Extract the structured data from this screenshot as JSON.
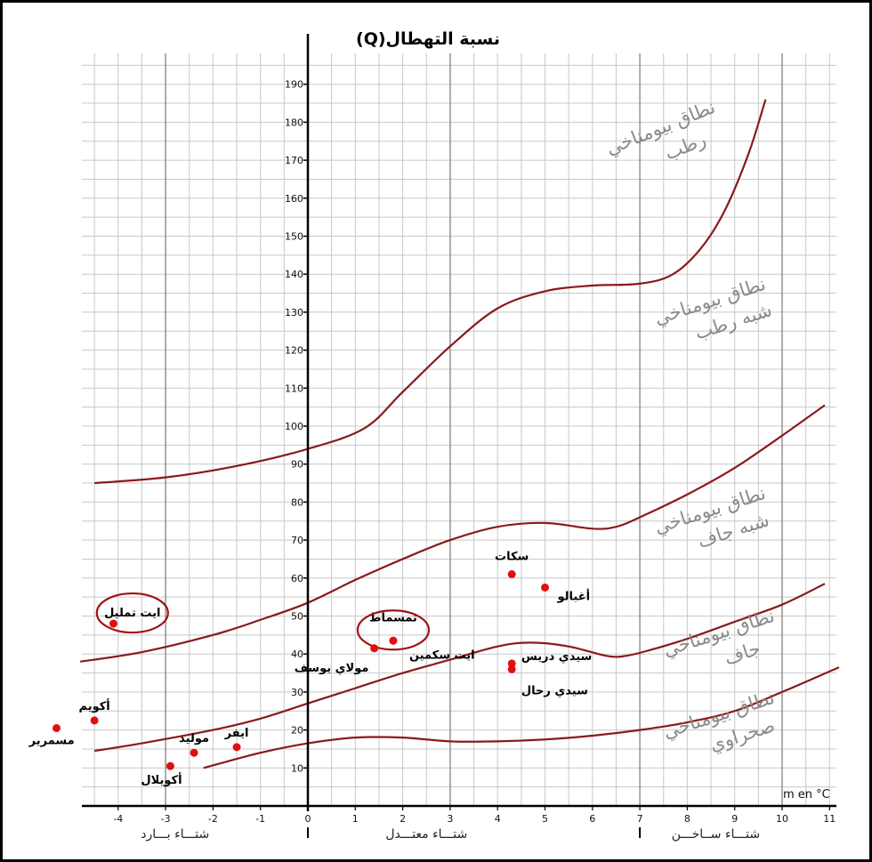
{
  "chart_data": {
    "type": "scatter",
    "ylabel": "نسبة التهطال(Q)",
    "xlabel": "m en °C",
    "xlim": [
      -4.8,
      11.2
    ],
    "ylim": [
      0,
      196
    ],
    "x_ticks": [
      -4,
      -3,
      -2,
      -1,
      0,
      1,
      2,
      3,
      4,
      5,
      6,
      7,
      8,
      9,
      10,
      11
    ],
    "y_ticks": [
      10,
      20,
      30,
      40,
      50,
      60,
      70,
      80,
      90,
      100,
      110,
      120,
      130,
      140,
      150,
      160,
      170,
      180,
      190
    ],
    "grid": true,
    "zones": [
      {
        "lines": [
          "نطاق بيومناخي",
          "رطب"
        ]
      },
      {
        "lines": [
          "نطاق بيومناخي",
          "شبه رطب"
        ]
      },
      {
        "lines": [
          "نطاق بيومناخي",
          "شبه جاف"
        ]
      },
      {
        "lines": [
          "نطاق بيومناخي",
          "جاف"
        ]
      },
      {
        "lines": [
          "نطاق بيومناخي",
          "صحراوي"
        ]
      }
    ],
    "winters": [
      {
        "label": "شتـــاء بـــارد"
      },
      {
        "label": "شتـــاء معتـــدل"
      },
      {
        "label": "شتـــاء ســاخـــن"
      }
    ],
    "boundaries": [
      {
        "name": "humid / sub-humid",
        "points": [
          [
            -4.5,
            85
          ],
          [
            -3,
            86.5
          ],
          [
            -1.5,
            89.5
          ],
          [
            0,
            94
          ],
          [
            1.2,
            99.5
          ],
          [
            2,
            109
          ],
          [
            3,
            121
          ],
          [
            4,
            131
          ],
          [
            5,
            135.5
          ],
          [
            6,
            137
          ],
          [
            7,
            137.5
          ],
          [
            7.7,
            140
          ],
          [
            8.3,
            147
          ],
          [
            8.8,
            157
          ],
          [
            9.3,
            172
          ],
          [
            9.65,
            186
          ]
        ]
      },
      {
        "name": "sub-humid / semi-arid",
        "points": [
          [
            -4.8,
            38
          ],
          [
            -3.5,
            40.5
          ],
          [
            -2,
            45
          ],
          [
            -1,
            49
          ],
          [
            0,
            53.5
          ],
          [
            1,
            59.5
          ],
          [
            2,
            65
          ],
          [
            3,
            70
          ],
          [
            4,
            73.5
          ],
          [
            5,
            74.5
          ],
          [
            6,
            73
          ],
          [
            6.5,
            73.5
          ],
          [
            7,
            76
          ],
          [
            8,
            82
          ],
          [
            9,
            89
          ],
          [
            10,
            97.5
          ],
          [
            10.9,
            105.5
          ]
        ]
      },
      {
        "name": "semi-arid / arid",
        "points": [
          [
            -4.5,
            14.5
          ],
          [
            -3.5,
            16.5
          ],
          [
            -2,
            20
          ],
          [
            -1,
            23
          ],
          [
            0,
            27
          ],
          [
            1,
            31
          ],
          [
            2,
            35
          ],
          [
            3,
            38.5
          ],
          [
            4,
            42
          ],
          [
            4.7,
            43
          ],
          [
            5.5,
            42
          ],
          [
            6.3,
            39.5
          ],
          [
            6.7,
            39.5
          ],
          [
            7.2,
            41
          ],
          [
            8,
            44
          ],
          [
            9,
            48.5
          ],
          [
            10,
            53
          ],
          [
            10.9,
            58.5
          ]
        ]
      },
      {
        "name": "arid / saharan",
        "points": [
          [
            -2.2,
            10
          ],
          [
            -1,
            14
          ],
          [
            0,
            16.5
          ],
          [
            1,
            18
          ],
          [
            2,
            18
          ],
          [
            3,
            17
          ],
          [
            4,
            17
          ],
          [
            5,
            17.5
          ],
          [
            6,
            18.5
          ],
          [
            7,
            20
          ],
          [
            8,
            22
          ],
          [
            9,
            25
          ],
          [
            10,
            30
          ],
          [
            11.2,
            36.5
          ]
        ]
      }
    ],
    "stations": [
      {
        "name": "ايت تمليل",
        "x": -4.1,
        "y": 48,
        "circled": true
      },
      {
        "name": "تمسماط",
        "x": 1.8,
        "y": 43.5,
        "circled": true
      },
      {
        "name": "مولاي يوسف",
        "x": 1.4,
        "y": 41.5
      },
      {
        "name": "ايت سكمين",
        "x": 1.8,
        "y": 43.5
      },
      {
        "name": "سكات",
        "x": 4.3,
        "y": 61
      },
      {
        "name": "أغبالو",
        "x": 5,
        "y": 57.5
      },
      {
        "name": "سيدي دريس",
        "x": 4.3,
        "y": 37.5
      },
      {
        "name": "سيدي رحال",
        "x": 4.3,
        "y": 36
      },
      {
        "name": "أكويم",
        "x": -4.5,
        "y": 22.5
      },
      {
        "name": "مسمرير",
        "x": -5.3,
        "y": 20.5
      },
      {
        "name": "ايفر",
        "x": -1.5,
        "y": 15.5
      },
      {
        "name": "موليد",
        "x": -2.4,
        "y": 14
      },
      {
        "name": "أكويلال",
        "x": -2.9,
        "y": 10.5
      }
    ]
  }
}
